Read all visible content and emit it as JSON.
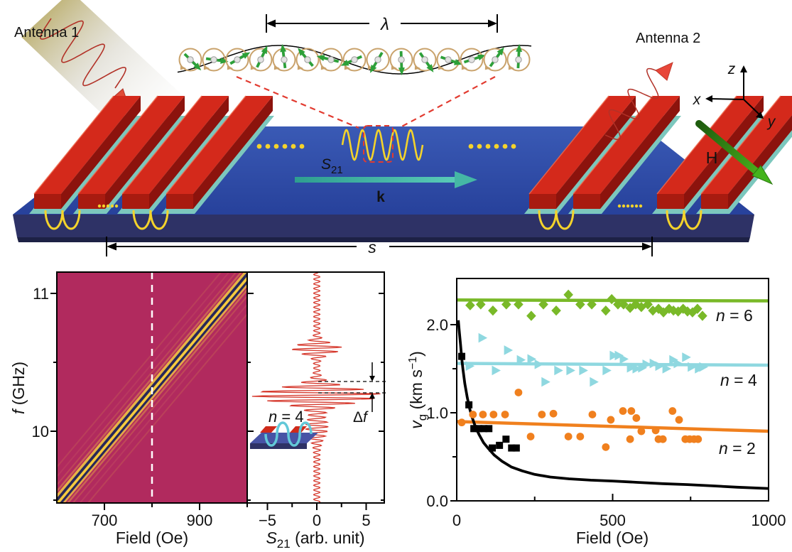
{
  "schematic": {
    "antenna1_label": "Antenna 1",
    "antenna2_label": "Antenna 2",
    "lambda_label": "λ",
    "axis_z_label": "z",
    "axis_x_label": "x",
    "axis_y_label": "y",
    "h_field_label": "H",
    "s21_param": {
      "main": "S",
      "sub": "21"
    },
    "k_vector_label": "k",
    "separation_label": "s",
    "colors": {
      "substrate_top": "#2c4aa6",
      "substrate_front": "#2e3266",
      "antenna_top": "#d4291b",
      "antenna_side": "#8c130d",
      "antenna_front": "#a81b10",
      "underlayer": "#7cc7bd",
      "microwave_yellow": "#f4d32b",
      "spin_arrow_green": "#2da039",
      "precession_ring": "#c9a26b",
      "k_arrow_teal": "#45b7a5",
      "h_arrow_green": "#44b31c",
      "rf_wave_red": "#b23228",
      "dashed_red": "#e23b30"
    }
  },
  "chart_data": [
    {
      "type": "heatmap",
      "panel": "bottom-left",
      "xlabel": "Field (Oe)",
      "ylabel_italic": "f",
      "ylabel_rest": " (GHz)",
      "xlim": [
        600,
        1000
      ],
      "ylim": [
        9.48,
        11.16
      ],
      "xticks": [
        700,
        900
      ],
      "xticks_minor": [
        800,
        1000
      ],
      "yticks": [
        10,
        11
      ],
      "yticks_minor": [
        9.5,
        10.5
      ],
      "background_color": "#b12a5e",
      "cursor_line": {
        "field_oe": 800,
        "style": "white dashed vertical"
      },
      "band": {
        "description": "spin-wave transmission band, center frequency rises linearly with field",
        "f_center_at_600_oe": 9.48,
        "f_center_at_1000_oe": 11.12,
        "core_stripes": [
          {
            "offset_ghz": -0.057,
            "color": "#edbd45",
            "width": 3.5,
            "opacity": 0.85
          },
          {
            "offset_ghz": -0.031,
            "color": "#20265a",
            "width": 4.5,
            "opacity": 0.95
          },
          {
            "offset_ghz": -0.004,
            "color": "#f6cb3e",
            "width": 5.0,
            "opacity": 1.0
          },
          {
            "offset_ghz": 0.023,
            "color": "#20265a",
            "width": 4.5,
            "opacity": 0.95
          },
          {
            "offset_ghz": 0.049,
            "color": "#efc243",
            "width": 3.5,
            "opacity": 0.9
          }
        ],
        "satellite_stripes": [
          {
            "offset_ghz": -0.095,
            "color": "#e09a4a",
            "width": 2.5,
            "opacity": 0.55
          },
          {
            "offset_ghz": -0.14,
            "color": "#d4784d",
            "width": 2.0,
            "opacity": 0.4
          },
          {
            "offset_ghz": -0.2,
            "color": "#cd5f62",
            "width": 2.0,
            "opacity": 0.3
          },
          {
            "offset_ghz": -0.27,
            "color": "#e0a04a",
            "width": 2.0,
            "opacity": 0.2
          },
          {
            "offset_ghz": 0.085,
            "color": "#e09a4a",
            "width": 2.5,
            "opacity": 0.5
          },
          {
            "offset_ghz": 0.13,
            "color": "#d4784d",
            "width": 2.0,
            "opacity": 0.35
          },
          {
            "offset_ghz": 0.19,
            "color": "#cd5f62",
            "width": 2.0,
            "opacity": 0.27
          },
          {
            "offset_ghz": 0.26,
            "color": "#e0a04a",
            "width": 2.0,
            "opacity": 0.18
          }
        ]
      }
    },
    {
      "type": "line",
      "panel": "bottom-middle",
      "xlabel_italic": "S",
      "xlabel_sub": "21",
      "xlabel_rest": " (arb. unit)",
      "shares_y_with": "heatmap f (GHz) axis",
      "xlim": [
        -7.0,
        6.8
      ],
      "xticks": [
        -5,
        0,
        5
      ],
      "xticks_minor": [
        -2.5,
        2.5
      ],
      "trace_color": "#d5372b",
      "trace": {
        "description": "S21 vs frequency at 800 Oe showing oscillatory transmission bursts",
        "oscillation_period_ghz": 0.034,
        "baseline_amplitude": 0.32,
        "bursts": [
          {
            "f_center_ghz": 10.26,
            "amplitude": 6.3,
            "width_ghz": 0.075
          },
          {
            "f_center_ghz": 10.6,
            "amplitude": 2.3,
            "width_ghz": 0.05
          },
          {
            "f_center_ghz": 10.03,
            "amplitude": 0.85,
            "width_ghz": 0.1
          }
        ]
      },
      "annotation": {
        "delta_label": "Δ",
        "delta_f_italic": "f",
        "dashed_f_ghz": [
          10.36,
          10.28
        ]
      },
      "mode_label": {
        "var": "n",
        "rest": " = 4",
        "color": "#6ec3d4"
      }
    },
    {
      "type": "scatter",
      "panel": "bottom-right",
      "xlabel": "Field (Oe)",
      "ylabel_italic": "v",
      "ylabel_sub": "g",
      "ylabel_rest": " (km s",
      "ylabel_sup": "−1",
      "ylabel_close": ")",
      "xlim": [
        0,
        1000
      ],
      "ylim": [
        0,
        2.52
      ],
      "xticks": [
        0,
        500,
        1000
      ],
      "xticks_minor": [
        250,
        750
      ],
      "yticks": [
        0,
        1,
        2
      ],
      "ytick_labels": [
        "0.0",
        "1.0",
        "2.0"
      ],
      "yticks_minor": [
        0.5,
        1.5
      ],
      "series": [
        {
          "label_var": "n",
          "label_rest": " = 6",
          "marker": "diamond",
          "color": "#79b928",
          "fit_line_v": [
            2.28,
            2.27
          ],
          "points": [
            [
              43,
              2.22
            ],
            [
              77,
              2.23
            ],
            [
              116,
              2.16
            ],
            [
              159,
              2.23
            ],
            [
              198,
              2.23
            ],
            [
              239,
              2.1
            ],
            [
              278,
              2.23
            ],
            [
              319,
              2.16
            ],
            [
              358,
              2.34
            ],
            [
              396,
              2.23
            ],
            [
              433,
              2.23
            ],
            [
              478,
              2.16
            ],
            [
              497,
              2.29
            ],
            [
              517,
              2.23
            ],
            [
              535,
              2.23
            ],
            [
              556,
              2.19
            ],
            [
              574,
              2.23
            ],
            [
              592,
              2.2
            ],
            [
              613,
              2.23
            ],
            [
              629,
              2.16
            ],
            [
              647,
              2.18
            ],
            [
              663,
              2.14
            ],
            [
              681,
              2.18
            ],
            [
              695,
              2.16
            ],
            [
              710,
              2.15
            ],
            [
              726,
              2.18
            ],
            [
              740,
              2.15
            ],
            [
              756,
              2.14
            ],
            [
              772,
              2.18
            ],
            [
              788,
              2.1
            ]
          ]
        },
        {
          "label_var": "n",
          "label_rest": " = 4",
          "marker": "triangle-right",
          "color": "#8fd8e0",
          "fit_line_v": [
            1.56,
            1.54
          ],
          "points": [
            [
              39,
              1.53
            ],
            [
              80,
              1.85
            ],
            [
              123,
              1.48
            ],
            [
              162,
              1.71
            ],
            [
              203,
              1.6
            ],
            [
              237,
              1.61
            ],
            [
              260,
              1.55
            ],
            [
              282,
              1.35
            ],
            [
              323,
              1.48
            ],
            [
              362,
              1.48
            ],
            [
              403,
              1.48
            ],
            [
              437,
              1.35
            ],
            [
              478,
              1.48
            ],
            [
              501,
              1.65
            ],
            [
              517,
              1.65
            ],
            [
              533,
              1.61
            ],
            [
              556,
              1.51
            ],
            [
              574,
              1.5
            ],
            [
              592,
              1.51
            ],
            [
              606,
              1.55
            ],
            [
              629,
              1.56
            ],
            [
              647,
              1.53
            ],
            [
              670,
              1.5
            ],
            [
              692,
              1.6
            ],
            [
              706,
              1.56
            ],
            [
              733,
              1.63
            ],
            [
              751,
              1.52
            ],
            [
              774,
              1.5
            ],
            [
              788,
              1.52
            ]
          ]
        },
        {
          "label_var": "n",
          "label_rest": " = 2",
          "marker": "circle",
          "color": "#f0801e",
          "fit_line_v": [
            0.9,
            0.79
          ],
          "points": [
            [
              16,
              0.89
            ],
            [
              52,
              0.98
            ],
            [
              84,
              0.98
            ],
            [
              118,
              0.98
            ],
            [
              155,
              0.98
            ],
            [
              198,
              1.23
            ],
            [
              237,
              0.73
            ],
            [
              273,
              0.98
            ],
            [
              310,
              0.99
            ],
            [
              358,
              0.73
            ],
            [
              396,
              0.73
            ],
            [
              435,
              0.98
            ],
            [
              478,
              0.61
            ],
            [
              494,
              0.92
            ],
            [
              533,
              1.02
            ],
            [
              556,
              0.7
            ],
            [
              560,
              1.02
            ],
            [
              576,
              0.94
            ],
            [
              592,
              0.79
            ],
            [
              638,
              0.8
            ],
            [
              647,
              0.7
            ],
            [
              661,
              0.7
            ],
            [
              692,
              1.02
            ],
            [
              713,
              0.92
            ],
            [
              733,
              0.7
            ],
            [
              747,
              0.7
            ],
            [
              761,
              0.7
            ],
            [
              774,
              0.7
            ]
          ]
        },
        {
          "label_var": "",
          "label_rest": "",
          "marker": "square",
          "color": "#000000",
          "points": [
            [
              16,
              1.64
            ],
            [
              39,
              1.09
            ],
            [
              55,
              0.82
            ],
            [
              71,
              0.82
            ],
            [
              87,
              0.82
            ],
            [
              103,
              0.82
            ],
            [
              114,
              0.6
            ],
            [
              137,
              0.63
            ],
            [
              158,
              0.7
            ],
            [
              176,
              0.6
            ],
            [
              191,
              0.6
            ]
          ],
          "curve": [
            [
              5,
              2.05
            ],
            [
              8,
              1.93
            ],
            [
              12,
              1.78
            ],
            [
              16,
              1.62
            ],
            [
              20,
              1.49
            ],
            [
              26,
              1.33
            ],
            [
              34,
              1.17
            ],
            [
              42,
              1.04
            ],
            [
              50,
              0.94
            ],
            [
              60,
              0.84
            ],
            [
              72,
              0.75
            ],
            [
              86,
              0.66
            ],
            [
              100,
              0.6
            ],
            [
              120,
              0.52
            ],
            [
              145,
              0.45
            ],
            [
              175,
              0.385
            ],
            [
              210,
              0.34
            ],
            [
              250,
              0.3
            ],
            [
              300,
              0.27
            ],
            [
              360,
              0.25
            ],
            [
              430,
              0.235
            ],
            [
              500,
              0.225
            ],
            [
              580,
              0.21
            ],
            [
              660,
              0.195
            ],
            [
              740,
              0.185
            ],
            [
              820,
              0.17
            ],
            [
              900,
              0.155
            ],
            [
              1000,
              0.14
            ]
          ]
        }
      ]
    }
  ]
}
